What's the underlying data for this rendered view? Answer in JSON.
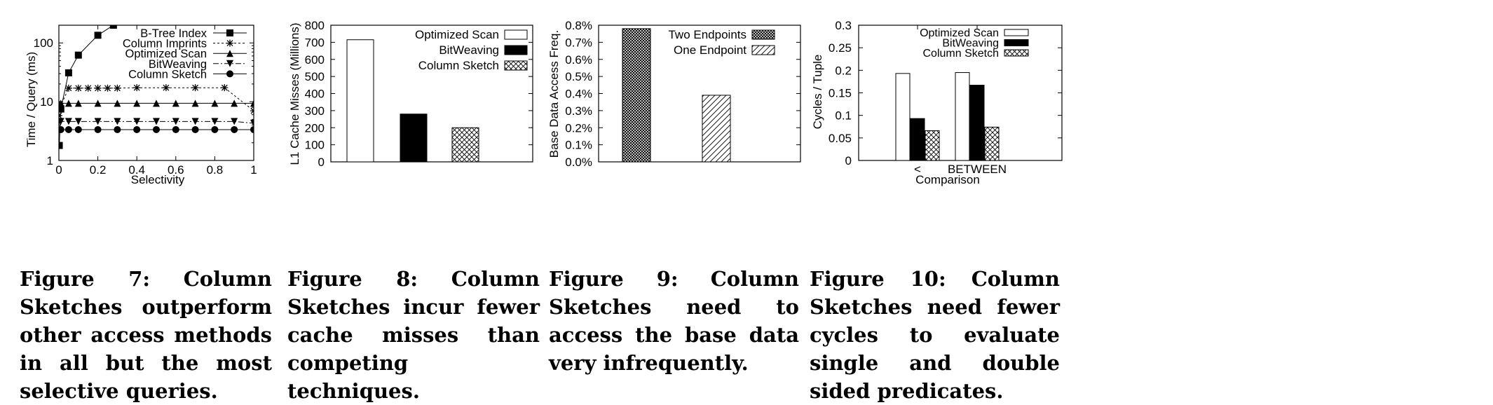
{
  "chart_data": [
    {
      "type": "line",
      "xlabel": "Selectivity",
      "ylabel": "Time / Query (ms)",
      "yscale": "log",
      "ylim": [
        1,
        200
      ],
      "xlim": [
        0,
        1
      ],
      "x_ticks": [
        "0",
        "0.2",
        "0.4",
        "0.6",
        "0.8",
        "1"
      ],
      "y_ticks": [
        "1",
        "10",
        "100"
      ],
      "legend_position": "top-right",
      "series": [
        {
          "name": "B-Tree Index",
          "marker": "square",
          "dash": "",
          "points": [
            [
              0.002,
              1.8
            ],
            [
              0.01,
              7.5
            ],
            [
              0.05,
              31
            ],
            [
              0.1,
              62
            ],
            [
              0.2,
              135
            ],
            [
              0.28,
              200
            ]
          ]
        },
        {
          "name": "Column Imprints",
          "marker": "star",
          "dash": "3,3",
          "points": [
            [
              0.0,
              5.8
            ],
            [
              0.01,
              8.5
            ],
            [
              0.05,
              17
            ],
            [
              0.1,
              17
            ],
            [
              0.15,
              17
            ],
            [
              0.2,
              17
            ],
            [
              0.25,
              17
            ],
            [
              0.3,
              17
            ],
            [
              0.4,
              17.3
            ],
            [
              0.55,
              17.3
            ],
            [
              0.7,
              17.3
            ],
            [
              0.85,
              17.3
            ],
            [
              1.0,
              7
            ]
          ]
        },
        {
          "name": "Optimized Scan",
          "marker": "triangle-up",
          "dash": "",
          "points": [
            [
              0.0,
              9.4
            ],
            [
              0.01,
              9.4
            ],
            [
              0.05,
              9.4
            ],
            [
              0.1,
              9.4
            ],
            [
              0.2,
              9.4
            ],
            [
              0.3,
              9.4
            ],
            [
              0.4,
              9.4
            ],
            [
              0.5,
              9.4
            ],
            [
              0.6,
              9.4
            ],
            [
              0.7,
              9.4
            ],
            [
              0.8,
              9.4
            ],
            [
              0.9,
              9.4
            ],
            [
              1.0,
              9.4
            ]
          ]
        },
        {
          "name": "BitWeaving",
          "marker": "triangle-down",
          "dash": "8,3,2,3",
          "points": [
            [
              0.0,
              4.6
            ],
            [
              0.01,
              4.6
            ],
            [
              0.05,
              4.6
            ],
            [
              0.1,
              4.6
            ],
            [
              0.2,
              4.6
            ],
            [
              0.3,
              4.6
            ],
            [
              0.4,
              4.6
            ],
            [
              0.5,
              4.6
            ],
            [
              0.6,
              4.6
            ],
            [
              0.7,
              4.6
            ],
            [
              0.8,
              4.6
            ],
            [
              0.9,
              4.6
            ],
            [
              1.0,
              4.3
            ]
          ]
        },
        {
          "name": "Column Sketch",
          "marker": "circle",
          "dash": "",
          "points": [
            [
              0.0,
              3.35
            ],
            [
              0.01,
              3.35
            ],
            [
              0.05,
              3.35
            ],
            [
              0.1,
              3.35
            ],
            [
              0.2,
              3.35
            ],
            [
              0.3,
              3.35
            ],
            [
              0.4,
              3.35
            ],
            [
              0.5,
              3.35
            ],
            [
              0.6,
              3.35
            ],
            [
              0.7,
              3.35
            ],
            [
              0.8,
              3.35
            ],
            [
              0.9,
              3.35
            ],
            [
              1.0,
              3.35
            ]
          ]
        }
      ]
    },
    {
      "type": "bar",
      "ylabel": "L1 Cache Misses (Millions)",
      "ylim": [
        0,
        800
      ],
      "y_ticks": [
        "0",
        "100",
        "200",
        "300",
        "400",
        "500",
        "600",
        "700",
        "800"
      ],
      "legend_position": "top-right",
      "series": [
        {
          "name": "Optimized Scan",
          "fill": "white",
          "values": [
            715
          ]
        },
        {
          "name": "BitWeaving",
          "fill": "black",
          "values": [
            280
          ]
        },
        {
          "name": "Column Sketch",
          "fill": "crosshatch",
          "values": [
            200
          ]
        }
      ]
    },
    {
      "type": "bar",
      "ylabel": "Base Data Access Freq.",
      "ylim": [
        0,
        0.8
      ],
      "y_ticks": [
        "0.0%",
        "0.1%",
        "0.2%",
        "0.3%",
        "0.4%",
        "0.5%",
        "0.6%",
        "0.7%",
        "0.8%"
      ],
      "legend_position": "top-right",
      "series": [
        {
          "name": "Two Endpoints",
          "fill": "dense-crosshatch",
          "values": [
            0.78
          ]
        },
        {
          "name": "One Endpoint",
          "fill": "diagonal",
          "values": [
            0.39
          ]
        }
      ]
    },
    {
      "type": "bar",
      "xlabel": "Comparison",
      "ylabel": "Cycles / Tuple",
      "categories": [
        "<",
        "BETWEEN"
      ],
      "ylim": [
        0,
        0.3
      ],
      "y_ticks": [
        "0",
        "0.05",
        "0.1",
        "0.15",
        "0.2",
        "0.25",
        "0.3"
      ],
      "legend_position": "top-right",
      "series": [
        {
          "name": "Optimized Scan",
          "fill": "white",
          "values": [
            0.193,
            0.195
          ]
        },
        {
          "name": "BitWeaving",
          "fill": "black",
          "values": [
            0.093,
            0.167
          ]
        },
        {
          "name": "Column Sketch",
          "fill": "crosshatch",
          "values": [
            0.066,
            0.074
          ]
        }
      ]
    }
  ],
  "captions": [
    {
      "label": "Figure 7:",
      "text": "Column Sketches outperform other access methods in all but the most selective queries."
    },
    {
      "label": "Figure 8:",
      "text": "Column Sketches incur fewer cache misses than competing techniques."
    },
    {
      "label": "Figure 9:",
      "text": "Column Sketches need to access the base data very infrequently."
    },
    {
      "label": "Figure 10:",
      "text": "Column Sketches need fewer cycles to evaluate single and double sided predicates."
    }
  ]
}
